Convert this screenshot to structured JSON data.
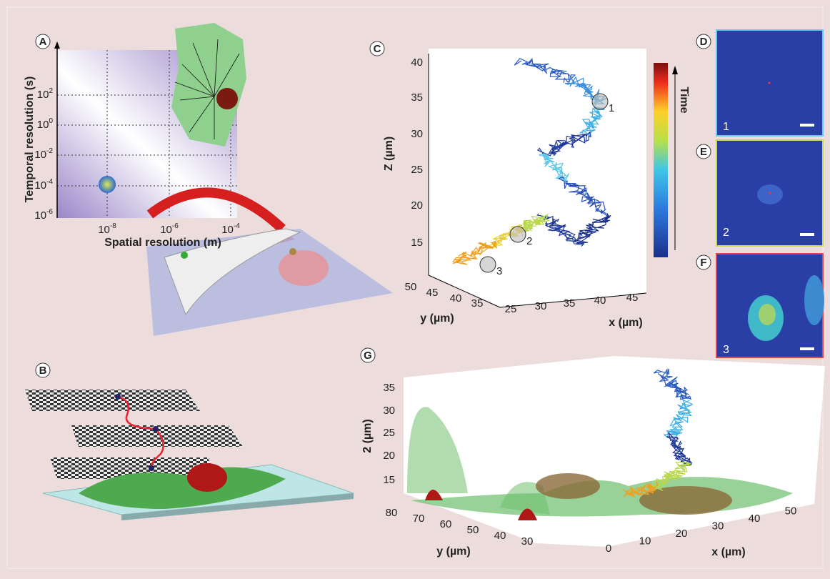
{
  "panels": {
    "A": {
      "label": "A",
      "y_axis_title": "Temporal resolution (s)",
      "x_axis_title": "Spatial resolution (m)",
      "y_ticks": [
        {
          "base": "10",
          "exp": "2"
        },
        {
          "base": "10",
          "exp": "0"
        },
        {
          "base": "10",
          "exp": "-2"
        },
        {
          "base": "10",
          "exp": "-4"
        },
        {
          "base": "10",
          "exp": "-6"
        }
      ],
      "x_ticks": [
        {
          "base": "10",
          "exp": "-8"
        },
        {
          "base": "10",
          "exp": "-6"
        },
        {
          "base": "10",
          "exp": "-4"
        }
      ]
    },
    "B": {
      "label": "B"
    },
    "C": {
      "label": "C",
      "z_axis_title": "Z (µm)",
      "z_ticks": [
        "40",
        "35",
        "30",
        "25",
        "20",
        "15"
      ],
      "y_axis_title": "y (µm)",
      "y_ticks": [
        "50",
        "45",
        "40",
        "35"
      ],
      "x_axis_title": "x (µm)",
      "x_ticks": [
        "25",
        "30",
        "35",
        "40",
        "45"
      ],
      "colorbar_title": "Time",
      "markers": [
        "1",
        "2",
        "3"
      ]
    },
    "D": {
      "label": "D",
      "frame": "1"
    },
    "E": {
      "label": "E",
      "frame": "2"
    },
    "F": {
      "label": "F",
      "frame": "3"
    },
    "G": {
      "label": "G",
      "z_axis_title": "2 (µm)",
      "z_ticks": [
        "35",
        "30",
        "25",
        "20",
        "15"
      ],
      "y_axis_title": "y (µm)",
      "y_ticks": [
        "80",
        "70",
        "60",
        "50",
        "40",
        "30"
      ],
      "x_axis_title": "x (µm)",
      "x_ticks": [
        "0",
        "10",
        "20",
        "30",
        "40",
        "50"
      ]
    }
  }
}
